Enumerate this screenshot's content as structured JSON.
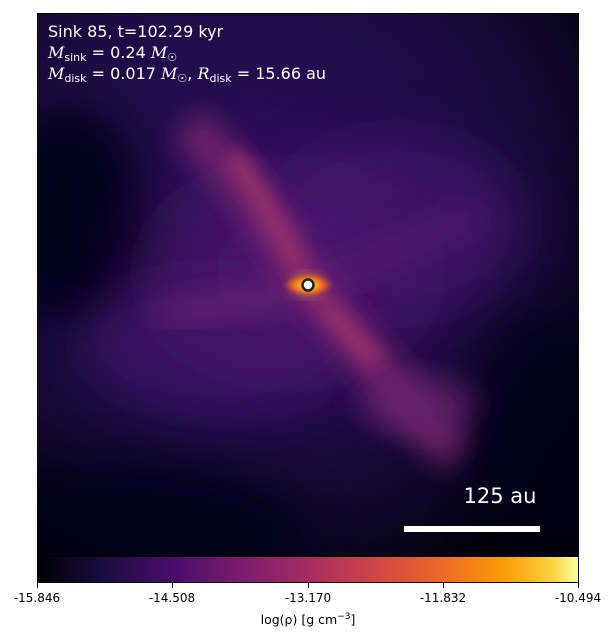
{
  "header": {
    "line1": "Sink 85, t=102.29 kyr",
    "sink_mass_sub": "sink",
    "sink_mass_value": "= 0.24",
    "disk_mass_sub": "disk",
    "disk_mass_value": "= 0.017",
    "disk_radius_sub": "disk",
    "disk_radius_value": "= 15.66 au",
    "mass_unit_symbol": "M",
    "sun_symbol": "☉",
    "radius_symbol": "R"
  },
  "scale_bar": {
    "label": "125 au"
  },
  "colorbar": {
    "colormap": "inferno",
    "ticks": [
      "-15.846",
      "-14.508",
      "-13.170",
      "-11.832",
      "-10.494"
    ],
    "label_prefix": "log(ρ) [g cm",
    "label_exponent": "−3",
    "label_suffix": "]"
  },
  "colors": {
    "background_dark": "#0a0420",
    "filament": "#8a2a6a",
    "core": "#f9a51f",
    "sink_marker": "#ffffff"
  }
}
